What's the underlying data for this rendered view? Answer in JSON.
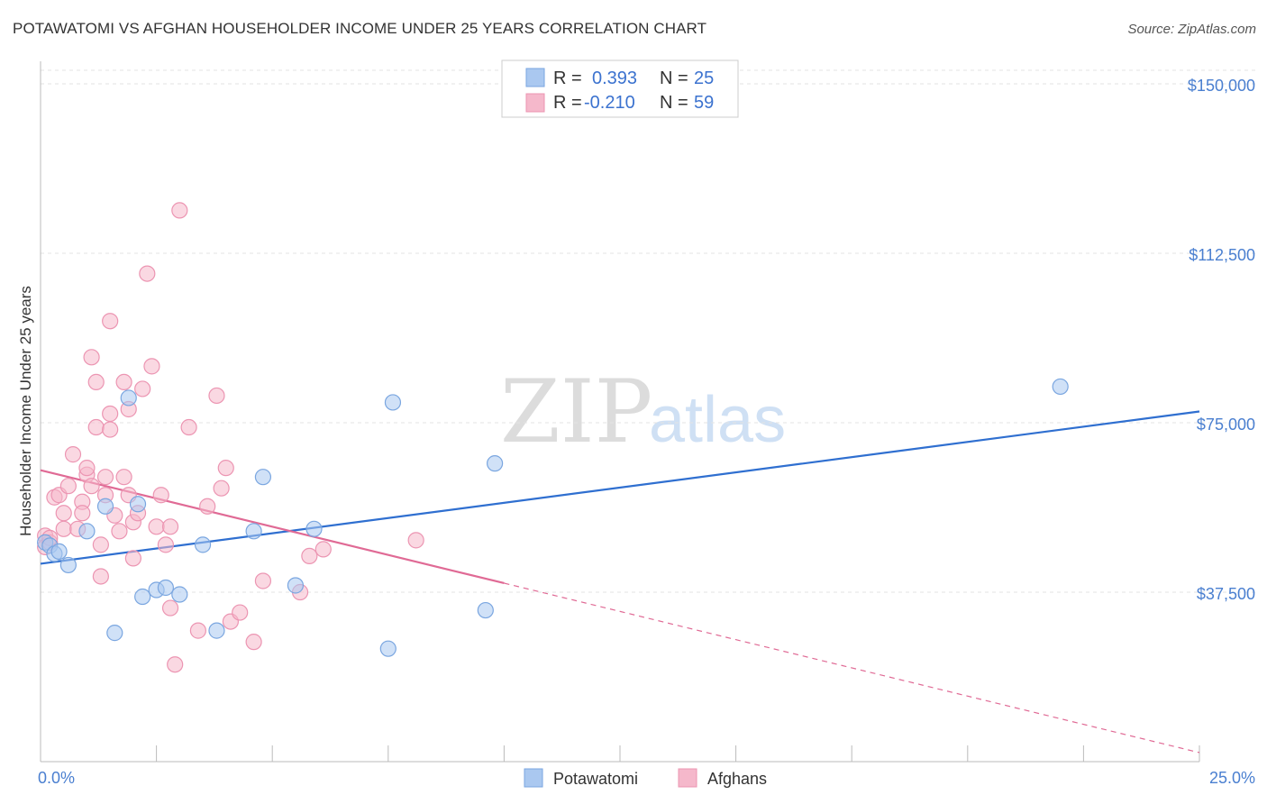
{
  "header": {
    "title": "POTAWATOMI VS AFGHAN HOUSEHOLDER INCOME UNDER 25 YEARS CORRELATION CHART",
    "source": "Source: ZipAtlas.com"
  },
  "watermark": {
    "zip": "ZIP",
    "atlas": "atlas"
  },
  "legend": {
    "items": [
      {
        "r_label": "R =",
        "r_value": "0.393",
        "n_label": "N =",
        "n_value": "25"
      },
      {
        "r_label": "R =",
        "r_value": "-0.210",
        "n_label": "N =",
        "n_value": "59"
      }
    ]
  },
  "bottom_legend": {
    "series1": "Potawatomi",
    "series2": "Afghans"
  },
  "chart_data": {
    "type": "scatter",
    "title": "POTAWATOMI VS AFGHAN HOUSEHOLDER INCOME UNDER 25 YEARS CORRELATION CHART",
    "xlabel": "",
    "ylabel": "Householder Income Under 25 years",
    "xlim": [
      0,
      25
    ],
    "ylim": [
      0,
      153000
    ],
    "x_tick_labels": [
      "0.0%",
      "25.0%"
    ],
    "y_ticks": [
      37500,
      75000,
      112500,
      150000
    ],
    "y_tick_labels": [
      "$37,500",
      "$75,000",
      "$112,500",
      "$150,000"
    ],
    "series": [
      {
        "name": "Potawatomi",
        "color": "#aac8f0",
        "stroke": "#7aa6e0",
        "line_color": "#2f6fd0",
        "R": 0.393,
        "N": 25,
        "trend": {
          "x": [
            0,
            25
          ],
          "y": [
            43800,
            77500
          ]
        },
        "points": [
          [
            0.1,
            48500
          ],
          [
            0.2,
            47800
          ],
          [
            0.3,
            46000
          ],
          [
            0.4,
            46500
          ],
          [
            0.6,
            43500
          ],
          [
            1.0,
            51000
          ],
          [
            1.4,
            56500
          ],
          [
            1.6,
            28500
          ],
          [
            1.9,
            80500
          ],
          [
            2.1,
            57000
          ],
          [
            2.2,
            36500
          ],
          [
            2.5,
            38000
          ],
          [
            2.7,
            38500
          ],
          [
            3.0,
            37000
          ],
          [
            3.5,
            48000
          ],
          [
            3.8,
            29000
          ],
          [
            4.6,
            51000
          ],
          [
            4.8,
            63000
          ],
          [
            5.5,
            39000
          ],
          [
            5.9,
            51500
          ],
          [
            7.5,
            25000
          ],
          [
            7.6,
            79500
          ],
          [
            9.6,
            33500
          ],
          [
            9.8,
            66000
          ],
          [
            22.0,
            83000
          ]
        ]
      },
      {
        "name": "Afghans",
        "color": "#f5b8cb",
        "stroke": "#ec95b2",
        "line_color": "#e06a95",
        "R": -0.21,
        "N": 59,
        "trend": {
          "x": [
            0,
            10
          ],
          "y": [
            64500,
            39500
          ]
        },
        "trend_dashed": {
          "x": [
            10,
            25
          ],
          "y": [
            39500,
            2000
          ]
        },
        "points": [
          [
            0.1,
            50000
          ],
          [
            0.1,
            47500
          ],
          [
            0.2,
            48500
          ],
          [
            0.2,
            49500
          ],
          [
            0.3,
            58500
          ],
          [
            0.4,
            59000
          ],
          [
            0.5,
            55000
          ],
          [
            0.5,
            51500
          ],
          [
            0.6,
            61000
          ],
          [
            0.7,
            68000
          ],
          [
            0.8,
            51500
          ],
          [
            0.9,
            57500
          ],
          [
            0.9,
            55000
          ],
          [
            1.0,
            63500
          ],
          [
            1.0,
            65000
          ],
          [
            1.1,
            61000
          ],
          [
            1.1,
            89500
          ],
          [
            1.2,
            74000
          ],
          [
            1.2,
            84000
          ],
          [
            1.3,
            48000
          ],
          [
            1.3,
            41000
          ],
          [
            1.4,
            59000
          ],
          [
            1.4,
            63000
          ],
          [
            1.5,
            73500
          ],
          [
            1.5,
            77000
          ],
          [
            1.5,
            97500
          ],
          [
            1.6,
            54500
          ],
          [
            1.7,
            51000
          ],
          [
            1.8,
            84000
          ],
          [
            1.8,
            63000
          ],
          [
            1.9,
            78000
          ],
          [
            1.9,
            59000
          ],
          [
            2.0,
            53000
          ],
          [
            2.0,
            45000
          ],
          [
            2.1,
            55000
          ],
          [
            2.2,
            82500
          ],
          [
            2.3,
            108000
          ],
          [
            2.4,
            87500
          ],
          [
            2.5,
            52000
          ],
          [
            2.6,
            59000
          ],
          [
            2.7,
            48000
          ],
          [
            2.8,
            52000
          ],
          [
            2.8,
            34000
          ],
          [
            2.9,
            21500
          ],
          [
            3.0,
            122000
          ],
          [
            3.2,
            74000
          ],
          [
            3.4,
            29000
          ],
          [
            3.6,
            56500
          ],
          [
            3.8,
            81000
          ],
          [
            3.9,
            60500
          ],
          [
            4.0,
            65000
          ],
          [
            4.1,
            31000
          ],
          [
            4.3,
            33000
          ],
          [
            4.6,
            26500
          ],
          [
            4.8,
            40000
          ],
          [
            5.6,
            37500
          ],
          [
            5.8,
            45500
          ],
          [
            6.1,
            47000
          ],
          [
            8.1,
            49000
          ]
        ]
      }
    ]
  }
}
